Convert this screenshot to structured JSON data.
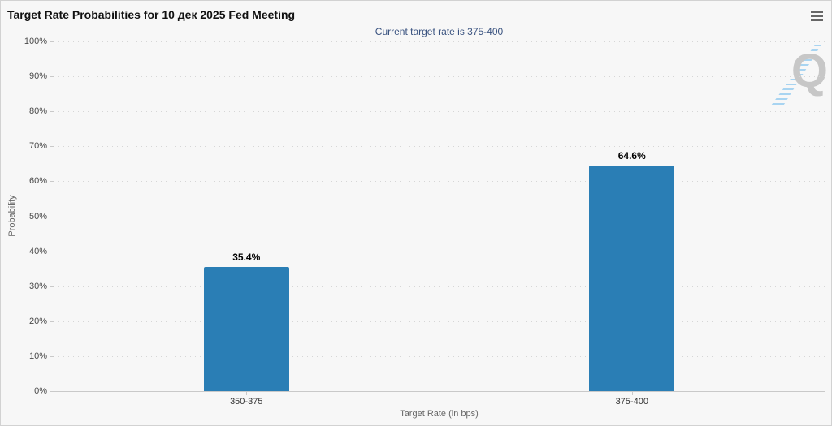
{
  "chart_data": {
    "type": "bar",
    "title": "Target Rate Probabilities for 10 дек 2025 Fed Meeting",
    "subtitle": "Current target rate is 375-400",
    "categories": [
      "350-375",
      "375-400"
    ],
    "values": [
      35.4,
      64.6
    ],
    "value_labels": [
      "35.4%",
      "64.6%"
    ],
    "xlabel": "Target Rate (in bps)",
    "ylabel": "Probability",
    "ylim": [
      0,
      100
    ],
    "ytick_labels": [
      "0%",
      "10%",
      "20%",
      "30%",
      "40%",
      "50%",
      "60%",
      "70%",
      "80%",
      "90%",
      "100%"
    ],
    "grid": "horizontal-dotted",
    "legend": "none",
    "colors": {
      "bar": "#2a7eb5",
      "subtitle_text": "#3a5380",
      "background": "#f7f7f7"
    }
  },
  "watermark": {
    "letter": "Q"
  }
}
